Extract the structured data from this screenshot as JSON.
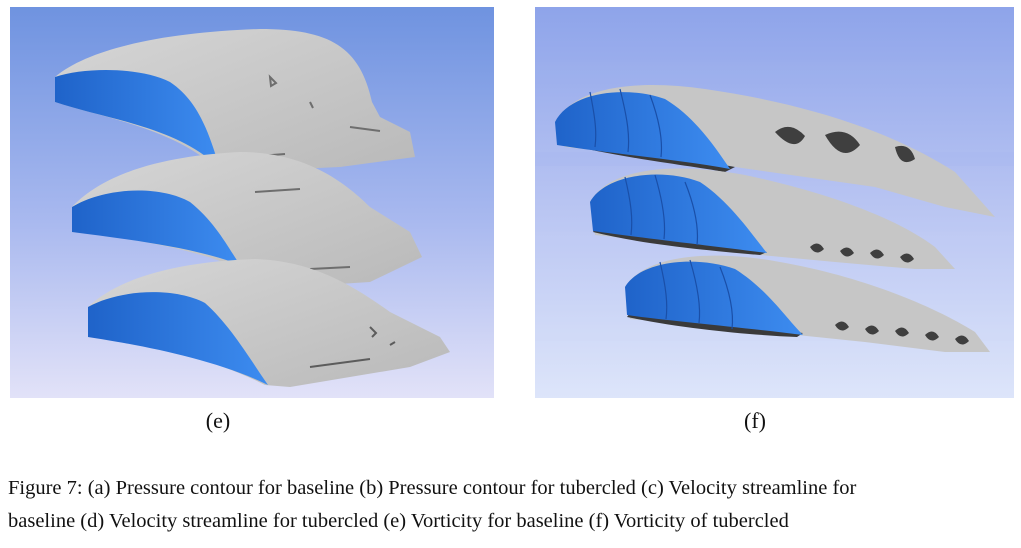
{
  "panels": [
    {
      "id": "e",
      "label": "(e)"
    },
    {
      "id": "f",
      "label": "(f)"
    }
  ],
  "caption": {
    "line1": "Figure 7: (a) Pressure contour for baseline  (b)  Pressure contour for tubercled  (c) Velocity streamline for",
    "line2": "baseline  (d) Velocity streamline for tubercled  (e) Vorticity for baseline  (f) Vorticity of tubercled"
  },
  "colors": {
    "surface_blue": "#2f7fe6",
    "isosurface_gray": "#c9c9c9",
    "shadow_dark": "#3a3a3a"
  }
}
